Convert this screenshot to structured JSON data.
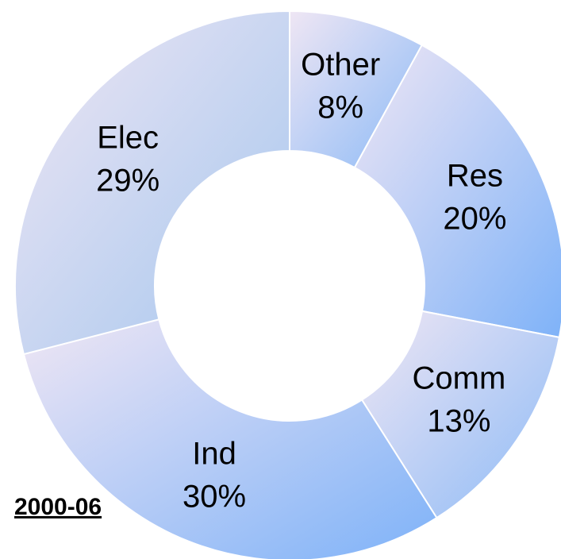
{
  "chart_data": {
    "type": "donut",
    "title": "2000-06",
    "categories": [
      "Other",
      "Res",
      "Comm",
      "Ind",
      "Elec"
    ],
    "values": [
      8,
      20,
      13,
      30,
      29
    ],
    "value_labels": [
      "8%",
      "20%",
      "13%",
      "30%",
      "29%"
    ],
    "colors": [
      "#8cbaf6",
      "#7eb2f8",
      "#8cbaf6",
      "#7eb2f8",
      "#a4c6ee"
    ]
  }
}
